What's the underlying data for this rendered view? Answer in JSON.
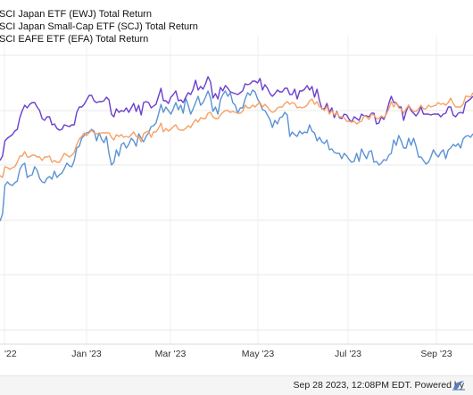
{
  "chart_data": {
    "type": "line",
    "title": "",
    "x_ticks": [
      "'22",
      "Jan '23",
      "Mar '23",
      "May '23",
      "Jul '23",
      "Sep '23"
    ],
    "grid": true,
    "legend_position": "top-left",
    "series": [
      {
        "name": "SCI Japan ETF (EWJ) Total Return",
        "color": "#5b93d3",
        "values": [
          248,
          240,
          208,
          204,
          207,
          208,
          205,
          203,
          190,
          185,
          183,
          199,
          197,
          196,
          187,
          191,
          200,
          204,
          205,
          200,
          198,
          201,
          192,
          199,
          196,
          194,
          189,
          183,
          186,
          187,
          180,
          166,
          164,
          155,
          152,
          149,
          148,
          145,
          147,
          158,
          149,
          156,
          160,
          153,
          172,
          185,
          182,
          168,
          175,
          162,
          160,
          166,
          162,
          155,
          158,
          164,
          150,
          155,
          159,
          153,
          149,
          142,
          141,
          138,
          128,
          117,
          126,
          120,
          124,
          128,
          122,
          115,
          123,
          118,
          127,
          110,
          118,
          128,
          122,
          115,
          108,
          118,
          115,
          109,
          102,
          110,
          125,
          120,
          128,
          112,
          106,
          102,
          108,
          104,
          115,
          118,
          127,
          121,
          121,
          111,
          104,
          107,
          101,
          103,
          111,
          116,
          123,
          124,
          129,
          134,
          143,
          135,
          139,
          132,
          131,
          126,
          129,
          153,
          148,
          151,
          153,
          147,
          150,
          148,
          149,
          140,
          147,
          149,
          158,
          154,
          159,
          161,
          157,
          168,
          167,
          171,
          172,
          172,
          178,
          172,
          175,
          179,
          182,
          181,
          172,
          181,
          167,
          173,
          178,
          170,
          169,
          182,
          181,
          185,
          183,
          179,
          180,
          174,
          172,
          157,
          163,
          152,
          158,
          166,
          166,
          155,
          163,
          155,
          164,
          176,
          176,
          180,
          184,
          182,
          176,
          168,
          173,
          176,
          171,
          168,
          178,
          168,
          166,
          162,
          164,
          161,
          166,
          156,
          153,
          152,
          154,
          150
        ]
      },
      {
        "name": "SCI Japan Small-Cap ETF (SCJ) Total Return",
        "color": "#6a3fcf",
        "values": [
          180,
          175,
          158,
          155,
          153,
          151,
          147,
          145,
          132,
          124,
          118,
          121,
          117,
          115,
          115,
          120,
          124,
          133,
          135,
          131,
          131,
          140,
          139,
          144,
          146,
          145,
          140,
          141,
          142,
          140,
          140,
          126,
          120,
          120,
          117,
          112,
          107,
          107,
          113,
          115,
          114,
          114,
          113,
          109,
          112,
          128,
          131,
          122,
          126,
          124,
          125,
          121,
          126,
          121,
          116,
          125,
          118,
          129,
          115,
          114,
          115,
          121,
          119,
          117,
          108,
          99,
          113,
          113,
          116,
          109,
          106,
          102,
          113,
          112,
          115,
          109,
          104,
          106,
          100,
          90,
          101,
          97,
          100,
          94,
          86,
          92,
          110,
          105,
          111,
          98,
          102,
          96,
          99,
          103,
          104,
          105,
          106,
          104,
          102,
          94,
          95,
          94,
          91,
          91,
          93,
          88,
          101,
          95,
          99,
          105,
          108,
          105,
          101,
          103,
          103,
          99,
          99,
          106,
          106,
          100,
          111,
          102,
          102,
          100,
          96,
          101,
          97,
          109,
          100,
          113,
          122,
          122,
          116,
          126,
          121,
          132,
          125,
          132,
          133,
          128,
          129,
          134,
          137,
          131,
          133,
          135,
          128,
          130,
          130,
          131,
          127,
          127,
          139,
          138,
          131,
          134,
          127,
          116,
          108,
          115,
          115,
          120,
          120,
          135,
          125,
          118,
          124,
          127,
          130,
          126,
          120,
          128,
          128,
          128,
          129,
          128,
          128,
          128,
          131,
          128,
          127,
          120,
          120,
          129,
          131,
          127,
          126,
          127,
          115,
          113,
          111,
          108
        ]
      },
      {
        "name": "SCI EAFE ETF (EFA) Total Return",
        "color": "#f7a165",
        "values": [
          197,
          199,
          187,
          188,
          190,
          188,
          187,
          182,
          175,
          175,
          170,
          176,
          176,
          174,
          174,
          176,
          176,
          180,
          176,
          176,
          175,
          182,
          180,
          182,
          182,
          177,
          172,
          174,
          176,
          174,
          171,
          162,
          156,
          153,
          149,
          152,
          149,
          146,
          149,
          150,
          150,
          149,
          149,
          149,
          149,
          154,
          157,
          151,
          153,
          151,
          154,
          153,
          154,
          151,
          148,
          153,
          153,
          159,
          150,
          148,
          147,
          154,
          148,
          148,
          144,
          138,
          148,
          144,
          147,
          145,
          142,
          140,
          145,
          146,
          146,
          144,
          141,
          143,
          138,
          134,
          137,
          132,
          133,
          133,
          127,
          126,
          131,
          133,
          133,
          129,
          126,
          124,
          124,
          126,
          125,
          126,
          127,
          127,
          125,
          118,
          121,
          121,
          118,
          120,
          117,
          115,
          120,
          117,
          120,
          124,
          126,
          125,
          121,
          120,
          120,
          116,
          114,
          117,
          115,
          116,
          121,
          120,
          121,
          120,
          118,
          113,
          111,
          117,
          114,
          120,
          121,
          124,
          119,
          128,
          124,
          129,
          126,
          131,
          131,
          132,
          136,
          136,
          137,
          136,
          139,
          137,
          136,
          130,
          131,
          134,
          128,
          129,
          133,
          133,
          130,
          132,
          128,
          122,
          114,
          120,
          115,
          121,
          122,
          127,
          122,
          118,
          122,
          125,
          125,
          122,
          118,
          122,
          122,
          118,
          120,
          119,
          118,
          115,
          117,
          116,
          118,
          115,
          110,
          116,
          120,
          120,
          120,
          117,
          108,
          108,
          109,
          104
        ]
      }
    ]
  },
  "footer": {
    "text": "Sep 28 2023, 12:08PM EDT. Powered by"
  }
}
